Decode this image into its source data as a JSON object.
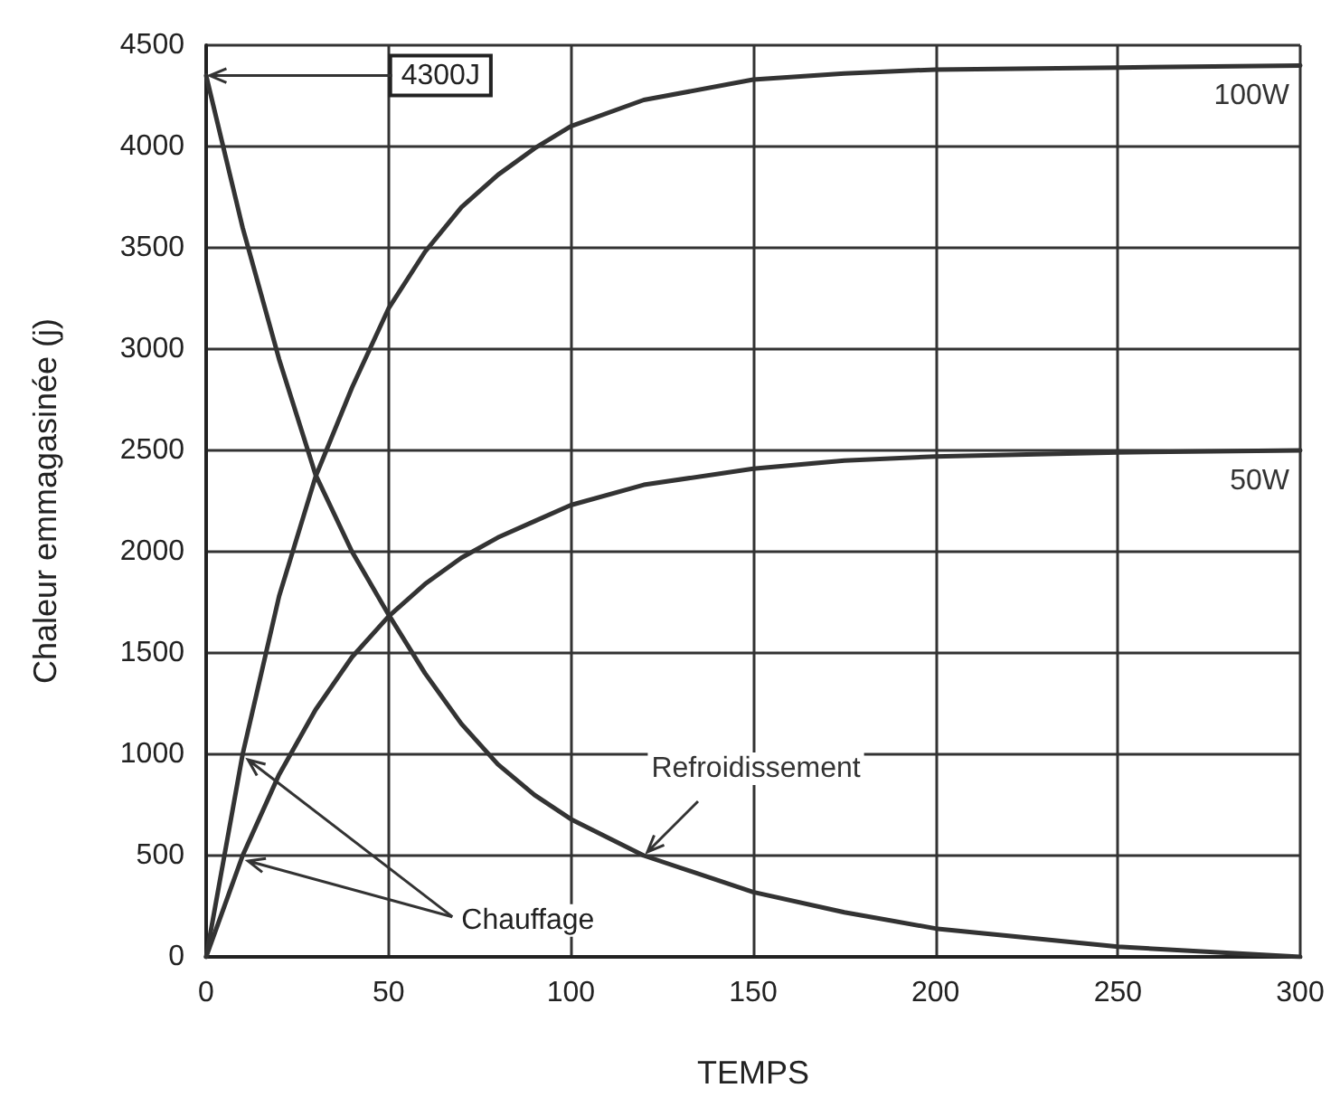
{
  "chart_data": {
    "type": "line",
    "xlabel": "TEMPS",
    "ylabel": "Chaleur emmagasinée (j)",
    "xlim": [
      0,
      300
    ],
    "xticks": [
      0,
      50,
      100,
      150,
      200,
      250,
      300
    ],
    "ylim": [
      0,
      4500
    ],
    "yticks": [
      0,
      500,
      1000,
      1500,
      2000,
      2500,
      3000,
      3500,
      4000,
      4500
    ],
    "grid": true,
    "legend": false,
    "marker": "none",
    "line_style": "solid",
    "x": [
      0,
      10,
      20,
      30,
      40,
      50,
      60,
      70,
      80,
      90,
      100,
      120,
      150,
      175,
      200,
      250,
      300
    ],
    "series": [
      {
        "name": "100W",
        "color": "#333333",
        "values": [
          0,
          1000,
          1780,
          2370,
          2810,
          3200,
          3480,
          3700,
          3860,
          3990,
          4100,
          4230,
          4330,
          4360,
          4380,
          4390,
          4400
        ]
      },
      {
        "name": "50W",
        "color": "#333333",
        "values": [
          0,
          500,
          900,
          1220,
          1480,
          1680,
          1840,
          1970,
          2070,
          2150,
          2230,
          2330,
          2410,
          2450,
          2470,
          2490,
          2500
        ]
      },
      {
        "name": "Refroidissement",
        "color": "#333333",
        "values": [
          4350,
          3600,
          2950,
          2380,
          2000,
          1690,
          1400,
          1150,
          950,
          800,
          680,
          500,
          320,
          220,
          140,
          50,
          0
        ]
      }
    ],
    "annotations": [
      {
        "text": "4300J",
        "x": 0,
        "y": 4350
      },
      {
        "text": "Chauffage",
        "x": 10,
        "y": 1000
      }
    ]
  }
}
